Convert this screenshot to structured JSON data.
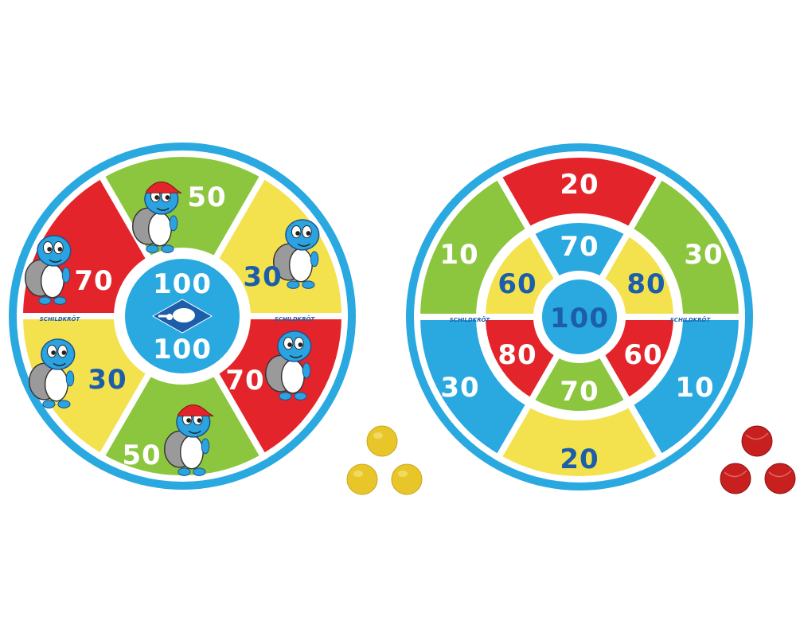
{
  "colors": {
    "blue": "#29a9e0",
    "green": "#8cc63f",
    "yellow": "#f3e14e",
    "red": "#e3252b",
    "dark_text": "#1c5ea9",
    "white": "#ffffff",
    "ball_yellow": "#e8c62a",
    "ball_red": "#c8201f"
  },
  "left_board": {
    "brand": "SCHILDKRÖT",
    "center_top": "100",
    "center_bottom": "100",
    "center_icon": "turtle-logo-icon",
    "sectors": [
      {
        "label": "50",
        "color": "green",
        "text": "white"
      },
      {
        "label": "30",
        "color": "yellow",
        "text": "dark_text"
      },
      {
        "label": "70",
        "color": "red",
        "text": "white"
      },
      {
        "label": "50",
        "color": "green",
        "text": "white"
      },
      {
        "label": "30",
        "color": "yellow",
        "text": "dark_text"
      },
      {
        "label": "70",
        "color": "red",
        "text": "white"
      }
    ]
  },
  "right_board": {
    "brand": "SCHILDKRÖT",
    "center": "100",
    "outer": [
      {
        "label": "20",
        "color": "red",
        "text": "white"
      },
      {
        "label": "30",
        "color": "green",
        "text": "white"
      },
      {
        "label": "10",
        "color": "blue",
        "text": "white"
      },
      {
        "label": "20",
        "color": "yellow",
        "text": "dark_text"
      },
      {
        "label": "30",
        "color": "blue",
        "text": "white"
      },
      {
        "label": "10",
        "color": "green",
        "text": "white"
      }
    ],
    "middle": [
      {
        "label": "70",
        "color": "blue",
        "text": "white"
      },
      {
        "label": "80",
        "color": "yellow",
        "text": "dark_text"
      },
      {
        "label": "60",
        "color": "red",
        "text": "white"
      },
      {
        "label": "70",
        "color": "green",
        "text": "white"
      },
      {
        "label": "80",
        "color": "red",
        "text": "white"
      },
      {
        "label": "60",
        "color": "yellow",
        "text": "dark_text"
      }
    ]
  },
  "balls": {
    "yellow_count": 3,
    "red_count": 3
  }
}
